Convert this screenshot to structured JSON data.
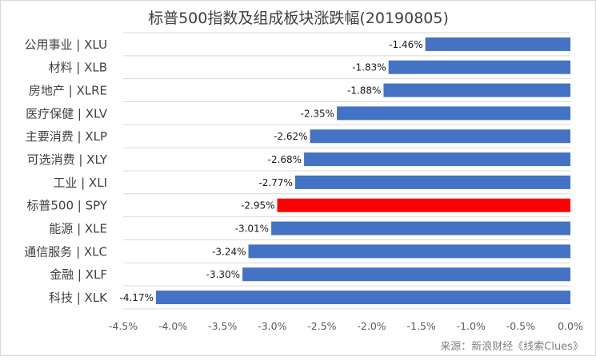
{
  "chart_data": {
    "type": "bar",
    "orientation": "horizontal",
    "title": "标普500指数及组成板块涨跌幅(20190805)",
    "categories": [
      "公用事业 | XLU",
      "材料 | XLB",
      "房地产 | XLRE",
      "医疗保健 | XLV",
      "主要消费 | XLP",
      "可选消费 | XLY",
      "工业 | XLI",
      "标普500 | SPY",
      "能源 | XLE",
      "通信服务 | XLC",
      "金融 | XLF",
      "科技 | XLK"
    ],
    "values": [
      -1.46,
      -1.83,
      -1.88,
      -2.35,
      -2.62,
      -2.68,
      -2.77,
      -2.95,
      -3.01,
      -3.24,
      -3.3,
      -4.17
    ],
    "value_labels": [
      "-1.46%",
      "-1.83%",
      "-1.88%",
      "-2.35%",
      "-2.62%",
      "-2.68%",
      "-2.77%",
      "-2.95%",
      "-3.01%",
      "-3.24%",
      "-3.30%",
      "-4.17%"
    ],
    "highlight": "标普500 | SPY",
    "colors": {
      "default": "#4472c4",
      "highlight": "#ff0000"
    },
    "x_ticks": [
      -4.5,
      -4.0,
      -3.5,
      -3.0,
      -2.5,
      -2.0,
      -1.5,
      -1.0,
      -0.5,
      0.0
    ],
    "x_tick_labels": [
      "-4.5%",
      "-4.0%",
      "-3.5%",
      "-3.0%",
      "-2.5%",
      "-2.0%",
      "-1.5%",
      "-1.0%",
      "-0.5%",
      "0.0%"
    ],
    "xlim": [
      -4.5,
      0
    ],
    "grid": true,
    "xlabel": "",
    "ylabel": ""
  },
  "source_note": "来源：新浪财经《线索Clues》"
}
